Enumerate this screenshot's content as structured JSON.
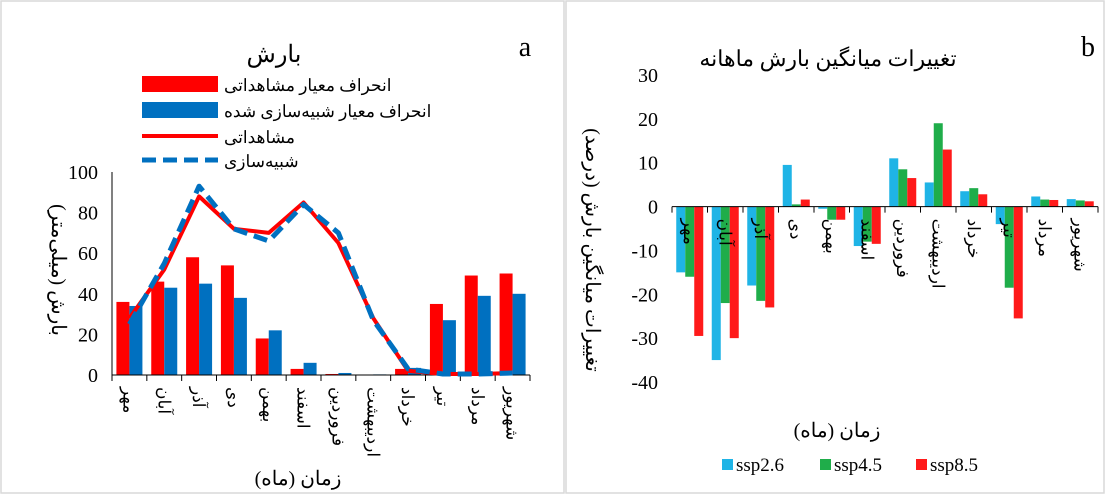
{
  "colors": {
    "observed": "#ff0000",
    "simulated": "#0070c0",
    "ssp2_6": "#1fb4e6",
    "ssp4_5": "#1fad4a",
    "ssp8_5": "#ff1a1a"
  },
  "chart_data": [
    {
      "panel_letter": "a",
      "type": "bar",
      "title": "بارش",
      "xlabel": "زمان (ماه)",
      "ylabel": "بارش (میلی‌متر)",
      "ylim": [
        0,
        100
      ],
      "yticks": [
        0,
        20,
        40,
        60,
        80,
        100
      ],
      "grid": false,
      "legend_position": "top-center",
      "categories": [
        "مهر",
        "آبان",
        "آذر",
        "دی",
        "بهمن",
        "اسفند",
        "فروردین",
        "اردیبهشت",
        "خرداد",
        "تیر",
        "مرداد",
        "شهریور"
      ],
      "series": [
        {
          "name": "انحراف معیار مشاهداتی",
          "kind": "bar",
          "color": "#ff0000",
          "values": [
            36,
            46,
            58,
            54,
            18,
            3,
            0.5,
            0.2,
            3,
            35,
            49,
            50
          ]
        },
        {
          "name": "انحراف معیار شبیه‌سازی شده",
          "kind": "bar",
          "color": "#0070c0",
          "values": [
            34,
            43,
            45,
            38,
            22,
            6,
            1,
            0.3,
            3.5,
            27,
            39,
            40
          ]
        },
        {
          "name": "مشاهداتی",
          "kind": "line",
          "color": "#ff0000",
          "values": [
            28,
            52,
            88,
            72,
            70,
            85,
            65,
            28,
            2,
            0.5,
            0.5,
            1
          ]
        },
        {
          "name": "شبیه‌سازی",
          "kind": "line-dashed",
          "color": "#0070c0",
          "values": [
            25,
            55,
            93,
            72,
            66,
            84,
            70,
            27,
            3,
            0.5,
            0.5,
            1
          ]
        }
      ]
    },
    {
      "panel_letter": "b",
      "type": "bar",
      "title": "تغییرات میانگین بارش ماهانه",
      "xlabel": "زمان (ماه)",
      "ylabel": "تغییرات میانگین بارش (درصد)",
      "ylim": [
        -40,
        30
      ],
      "yticks": [
        -40,
        -30,
        -20,
        -10,
        0,
        10,
        20,
        30
      ],
      "grid": false,
      "legend_position": "bottom",
      "categories": [
        "مهر",
        "آبان",
        "آذر",
        "دی",
        "بهمن",
        "اسفند",
        "فروردین",
        "اردیبهشت",
        "خرداد",
        "تیر",
        "مرداد",
        "شهریور"
      ],
      "series": [
        {
          "name": "ssp2.6",
          "color": "#1fb4e6",
          "values": [
            -15,
            -35,
            -18,
            9.5,
            -0.5,
            -9,
            11,
            5.5,
            3.5,
            -4,
            2.3,
            1.7
          ]
        },
        {
          "name": "ssp4.5",
          "color": "#1fad4a",
          "values": [
            -16,
            -22,
            -21.5,
            0.5,
            -3,
            -8,
            8.5,
            19,
            4.2,
            -18.5,
            1.6,
            1.4
          ]
        },
        {
          "name": "ssp8.5",
          "color": "#ff1a1a",
          "values": [
            -29.5,
            -30,
            -23,
            1.6,
            -3,
            -8.5,
            6.5,
            13,
            2.8,
            -25.5,
            1.5,
            1.2
          ]
        }
      ]
    }
  ]
}
